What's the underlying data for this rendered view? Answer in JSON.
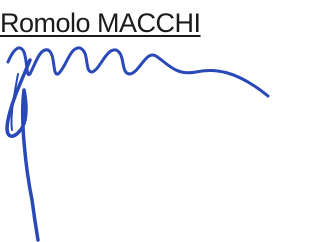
{
  "name": "Romolo MACCHI"
}
